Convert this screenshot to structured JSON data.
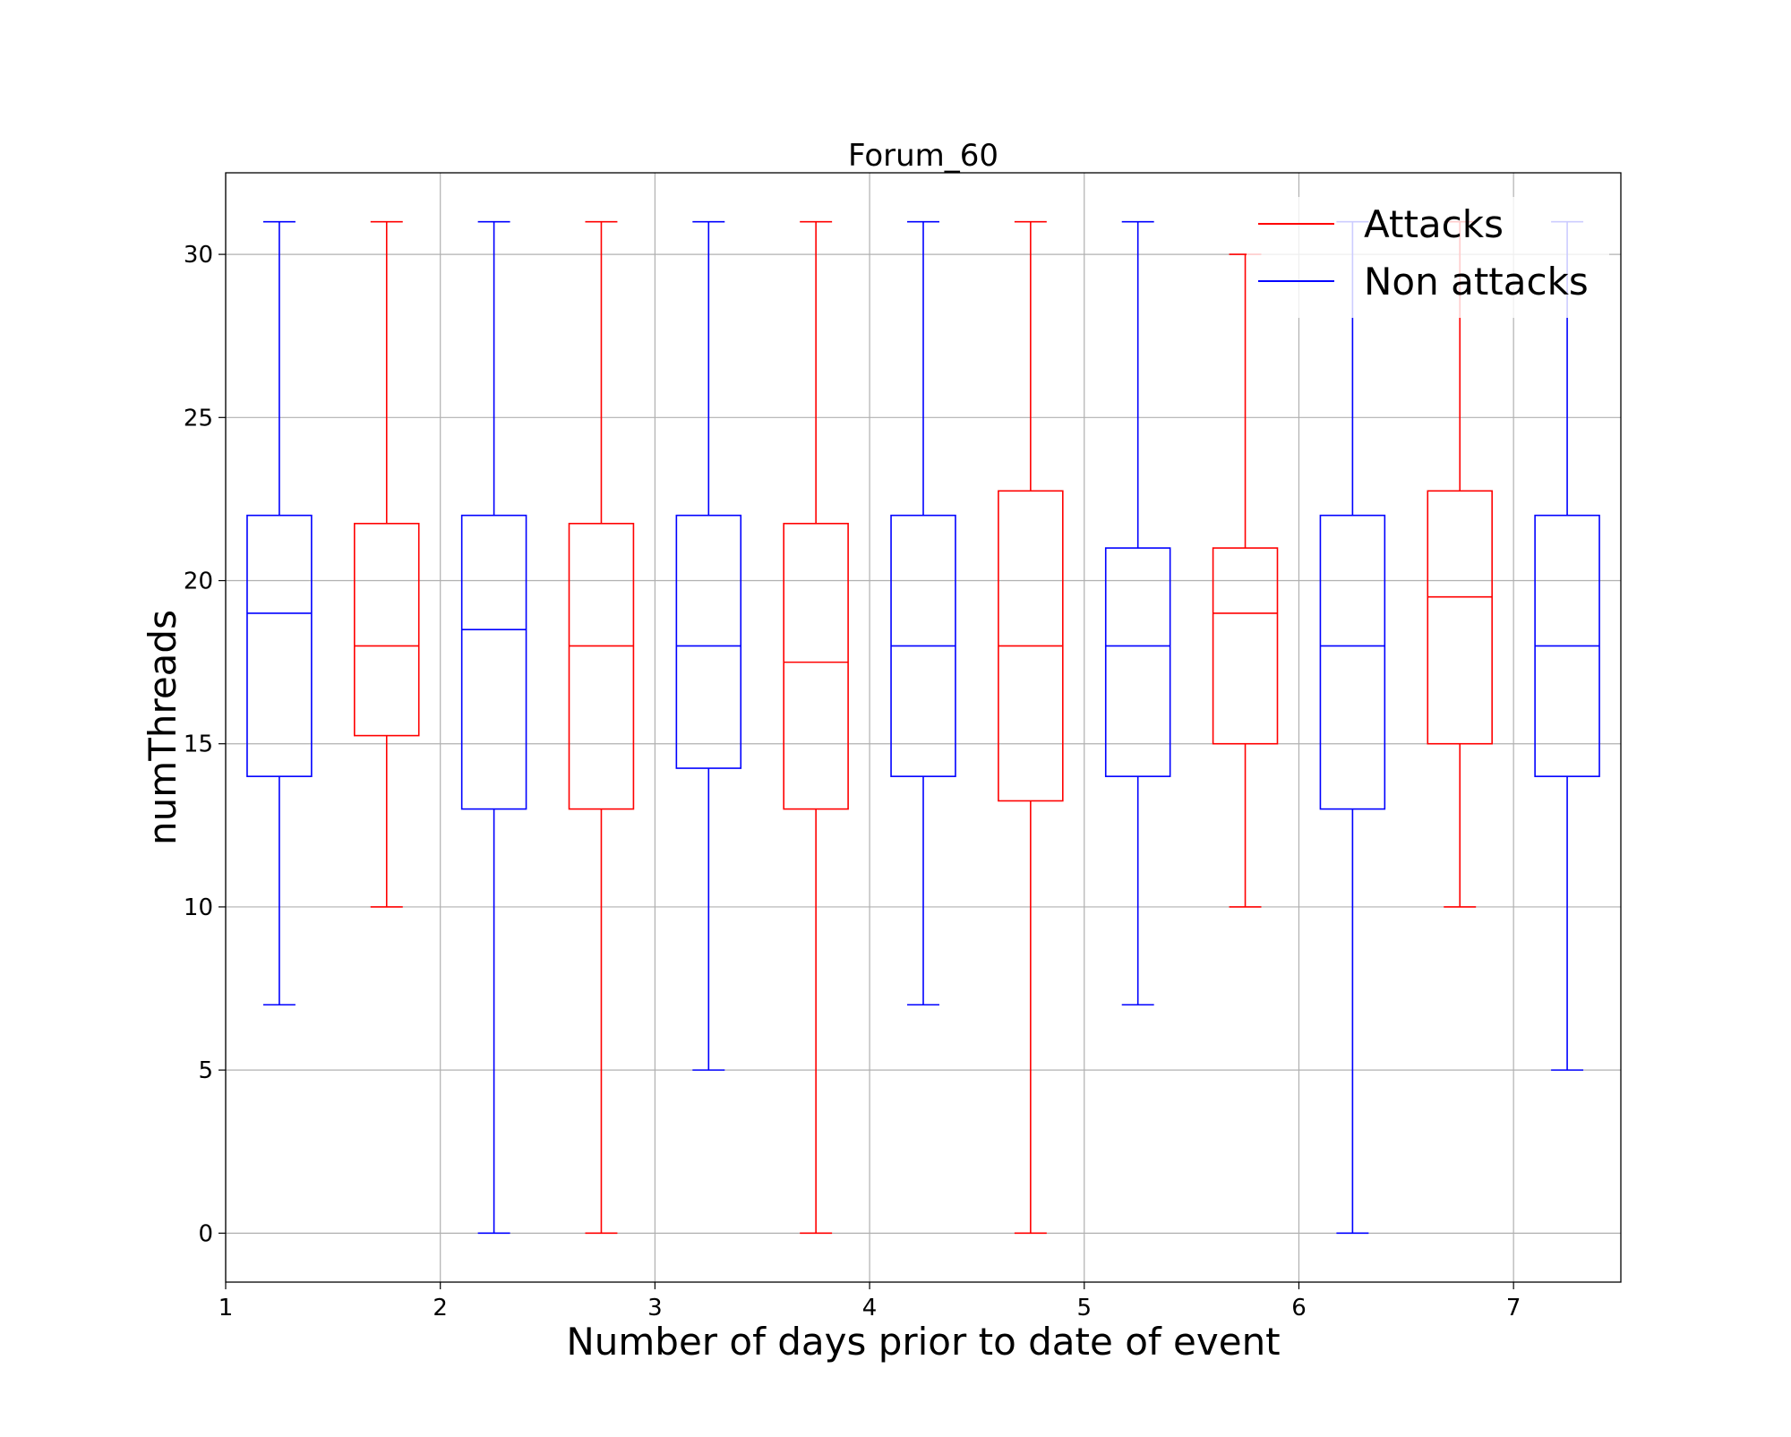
{
  "chart_data": {
    "type": "box",
    "title": "Forum_60",
    "xlabel": "Number of days prior to date of event",
    "ylabel": "numThreads",
    "xlim": [
      1,
      7.5
    ],
    "ylim": [
      -1.5,
      32.5
    ],
    "xticks": [
      1,
      2,
      3,
      4,
      5,
      6,
      7
    ],
    "yticks": [
      0,
      5,
      10,
      15,
      20,
      25,
      30
    ],
    "grid": true,
    "legend": {
      "position": "top-right",
      "entries": [
        "Attacks",
        "Non attacks"
      ]
    },
    "colors": {
      "Attacks": "#ff0000",
      "Non attacks": "#0000ff",
      "grid": "#b0b0b0",
      "axes": "#000000"
    },
    "boxes": [
      {
        "x": 1.25,
        "series": "Non attacks",
        "whislo": 7,
        "q1": 14,
        "med": 19,
        "q3": 22,
        "whishi": 31
      },
      {
        "x": 1.75,
        "series": "Attacks",
        "whislo": 10,
        "q1": 15.25,
        "med": 18,
        "q3": 21.75,
        "whishi": 31
      },
      {
        "x": 2.25,
        "series": "Non attacks",
        "whislo": 0,
        "q1": 13,
        "med": 18.5,
        "q3": 22,
        "whishi": 31
      },
      {
        "x": 2.75,
        "series": "Attacks",
        "whislo": 0,
        "q1": 13,
        "med": 18,
        "q3": 21.75,
        "whishi": 31
      },
      {
        "x": 3.25,
        "series": "Non attacks",
        "whislo": 5,
        "q1": 14.25,
        "med": 18,
        "q3": 22,
        "whishi": 31
      },
      {
        "x": 3.75,
        "series": "Attacks",
        "whislo": 0,
        "q1": 13,
        "med": 17.5,
        "q3": 21.75,
        "whishi": 31
      },
      {
        "x": 4.25,
        "series": "Non attacks",
        "whislo": 7,
        "q1": 14,
        "med": 18,
        "q3": 22,
        "whishi": 31
      },
      {
        "x": 4.75,
        "series": "Attacks",
        "whislo": 0,
        "q1": 13.25,
        "med": 18,
        "q3": 22.75,
        "whishi": 31
      },
      {
        "x": 5.25,
        "series": "Non attacks",
        "whislo": 7,
        "q1": 14,
        "med": 18,
        "q3": 21,
        "whishi": 31
      },
      {
        "x": 5.75,
        "series": "Attacks",
        "whislo": 10,
        "q1": 15,
        "med": 19,
        "q3": 21,
        "whishi": 30
      },
      {
        "x": 6.25,
        "series": "Non attacks",
        "whislo": 0,
        "q1": 13,
        "med": 18,
        "q3": 22,
        "whishi": 31
      },
      {
        "x": 6.75,
        "series": "Attacks",
        "whislo": 10,
        "q1": 15,
        "med": 19.5,
        "q3": 22.75,
        "whishi": 31
      },
      {
        "x": 7.25,
        "series": "Non attacks",
        "whislo": 5,
        "q1": 14,
        "med": 18,
        "q3": 22,
        "whishi": 31
      }
    ]
  }
}
